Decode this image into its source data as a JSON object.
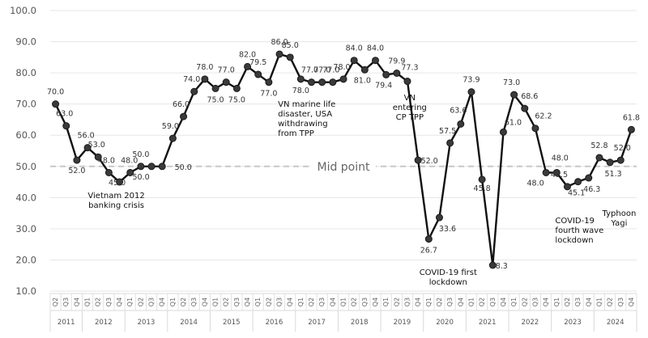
{
  "chart_data": {
    "type": "line",
    "ylim": [
      10,
      100
    ],
    "yticks": [
      "10.0",
      "20.0",
      "30.0",
      "40.0",
      "50.0",
      "60.0",
      "70.0",
      "80.0",
      "90.0",
      "100.0"
    ],
    "grid": true,
    "x": [
      "Q2",
      "Q3",
      "Q4",
      "Q1",
      "Q2",
      "Q3",
      "Q4",
      "Q1",
      "Q2",
      "Q3",
      "Q4",
      "Q1",
      "Q2",
      "Q3",
      "Q4",
      "Q1",
      "Q2",
      "Q3",
      "Q4",
      "Q1",
      "Q2",
      "Q3",
      "Q4",
      "Q1",
      "Q2",
      "Q3",
      "Q4",
      "Q1",
      "Q2",
      "Q3",
      "Q4",
      "Q1",
      "Q2",
      "Q3",
      "Q4",
      "Q1",
      "Q2",
      "Q3",
      "Q4",
      "Q1",
      "Q2",
      "Q3",
      "Q4",
      "Q1",
      "Q2",
      "Q3",
      "Q4",
      "Q1",
      "Q2",
      "Q3",
      "Q4",
      "Q1",
      "Q2",
      "Q3",
      "Q4"
    ],
    "years": [
      {
        "label": "2011",
        "count": 3
      },
      {
        "label": "2012",
        "count": 4
      },
      {
        "label": "2013",
        "count": 4
      },
      {
        "label": "2014",
        "count": 4
      },
      {
        "label": "2015",
        "count": 4
      },
      {
        "label": "2016",
        "count": 4
      },
      {
        "label": "2017",
        "count": 4
      },
      {
        "label": "2018",
        "count": 4
      },
      {
        "label": "2019",
        "count": 4
      },
      {
        "label": "2020",
        "count": 4
      },
      {
        "label": "2021",
        "count": 4
      },
      {
        "label": "2022",
        "count": 4
      },
      {
        "label": "2023",
        "count": 4
      },
      {
        "label": "2024",
        "count": 4
      }
    ],
    "values": [
      70.0,
      63.0,
      52.0,
      56.0,
      53.0,
      48.0,
      45.0,
      48.0,
      50.0,
      50.0,
      50.0,
      59.0,
      66.0,
      74.0,
      78.0,
      75.0,
      77.0,
      75.0,
      82.0,
      79.5,
      77.0,
      86.0,
      85.0,
      78.0,
      77.0,
      77.0,
      77.0,
      78.0,
      84.0,
      81.0,
      84.0,
      79.4,
      79.9,
      77.3,
      52.0,
      26.7,
      33.6,
      57.5,
      63.6,
      73.9,
      45.8,
      18.3,
      61.0,
      73.0,
      68.6,
      62.2,
      48.0,
      48.0,
      43.5,
      45.1,
      46.3,
      52.8,
      51.3,
      52.0,
      61.8
    ],
    "data_labels": [
      "70.0",
      "63.0",
      "52.0",
      "56.0",
      "53.0",
      "48.0",
      "45.0",
      "48.0",
      "50.0",
      "50.0",
      "50.0",
      "59.0",
      "66.0",
      "74.0",
      "78.0",
      "75.0",
      "77.0",
      "75.0",
      "82.0",
      "79.5",
      "77.0",
      "86.0",
      "85.0",
      "78.0",
      "77.0",
      "77.0",
      "77.0",
      "78.0",
      "84.0",
      "81.0",
      "84.0",
      "79.4",
      "79.9",
      "77.3",
      "52.0",
      "26.7",
      "33.6",
      "57.5",
      "63.6",
      "73.9",
      "45.8",
      "18.3",
      "61.0",
      "73.0",
      "68.6",
      "62.2",
      "48.0",
      "48.0",
      "43.5",
      "45.1",
      "46.3",
      "52.8",
      "51.3",
      "52.0",
      "61.8"
    ],
    "reference_line": {
      "value": 50,
      "label": "Mid point"
    },
    "annotations": [
      {
        "anchor": 6,
        "lines": [
          "Vietnam 2012",
          "banking crisis"
        ]
      },
      {
        "anchor": 22,
        "lines": [
          "VN marine life",
          "disaster, USA",
          "withdrawing",
          "from TPP"
        ]
      },
      {
        "anchor": 32,
        "lines": [
          "VN",
          "entering",
          "CP TPP"
        ]
      },
      {
        "anchor": 35,
        "lines": [
          "COVID-19 first",
          "lockdown"
        ]
      },
      {
        "anchor": 48,
        "lines": [
          "COVID-19",
          "fourth wave",
          "lockdown"
        ]
      },
      {
        "anchor": 54,
        "lines": [
          "Typhoon",
          "Yagi"
        ]
      }
    ],
    "colors": {
      "line": "#111111",
      "marker": "#3a3a3a",
      "grid": "#e6e6e6",
      "midline": "#c8c8c8"
    }
  }
}
